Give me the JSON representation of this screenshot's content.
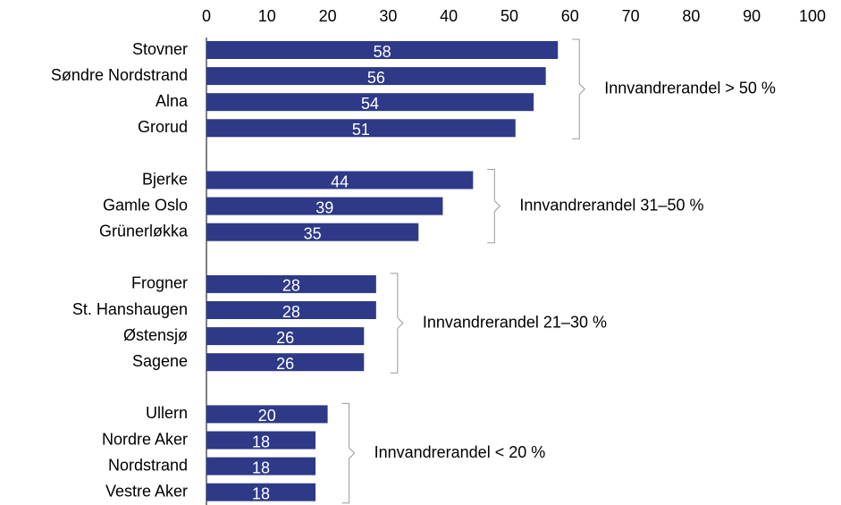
{
  "chart_data": {
    "type": "bar",
    "orientation": "horizontal",
    "color": "#2e3a87",
    "xlim": [
      0,
      100
    ],
    "xticks": [
      0,
      10,
      20,
      30,
      40,
      50,
      60,
      70,
      80,
      90,
      100
    ],
    "groups": [
      {
        "label": "Innvandrerandel > 50 %",
        "categories": [
          "Stovner",
          "Søndre Nordstrand",
          "Alna",
          "Grorud"
        ],
        "values": [
          58,
          56,
          54,
          51
        ]
      },
      {
        "label": "Innvandrerandel 31–50 %",
        "categories": [
          "Bjerke",
          "Gamle Oslo",
          "Grünerløkka"
        ],
        "values": [
          44,
          39,
          35
        ]
      },
      {
        "label": "Innvandrerandel 21–30 %",
        "categories": [
          "Frogner",
          "St. Hanshaugen",
          "Østensjø",
          "Sagene"
        ],
        "values": [
          28,
          28,
          26,
          26
        ]
      },
      {
        "label": "Innvandrerandel < 20 %",
        "categories": [
          "Ullern",
          "Nordre Aker",
          "Nordstrand",
          "Vestre Aker"
        ],
        "values": [
          20,
          18,
          18,
          18
        ]
      }
    ]
  }
}
